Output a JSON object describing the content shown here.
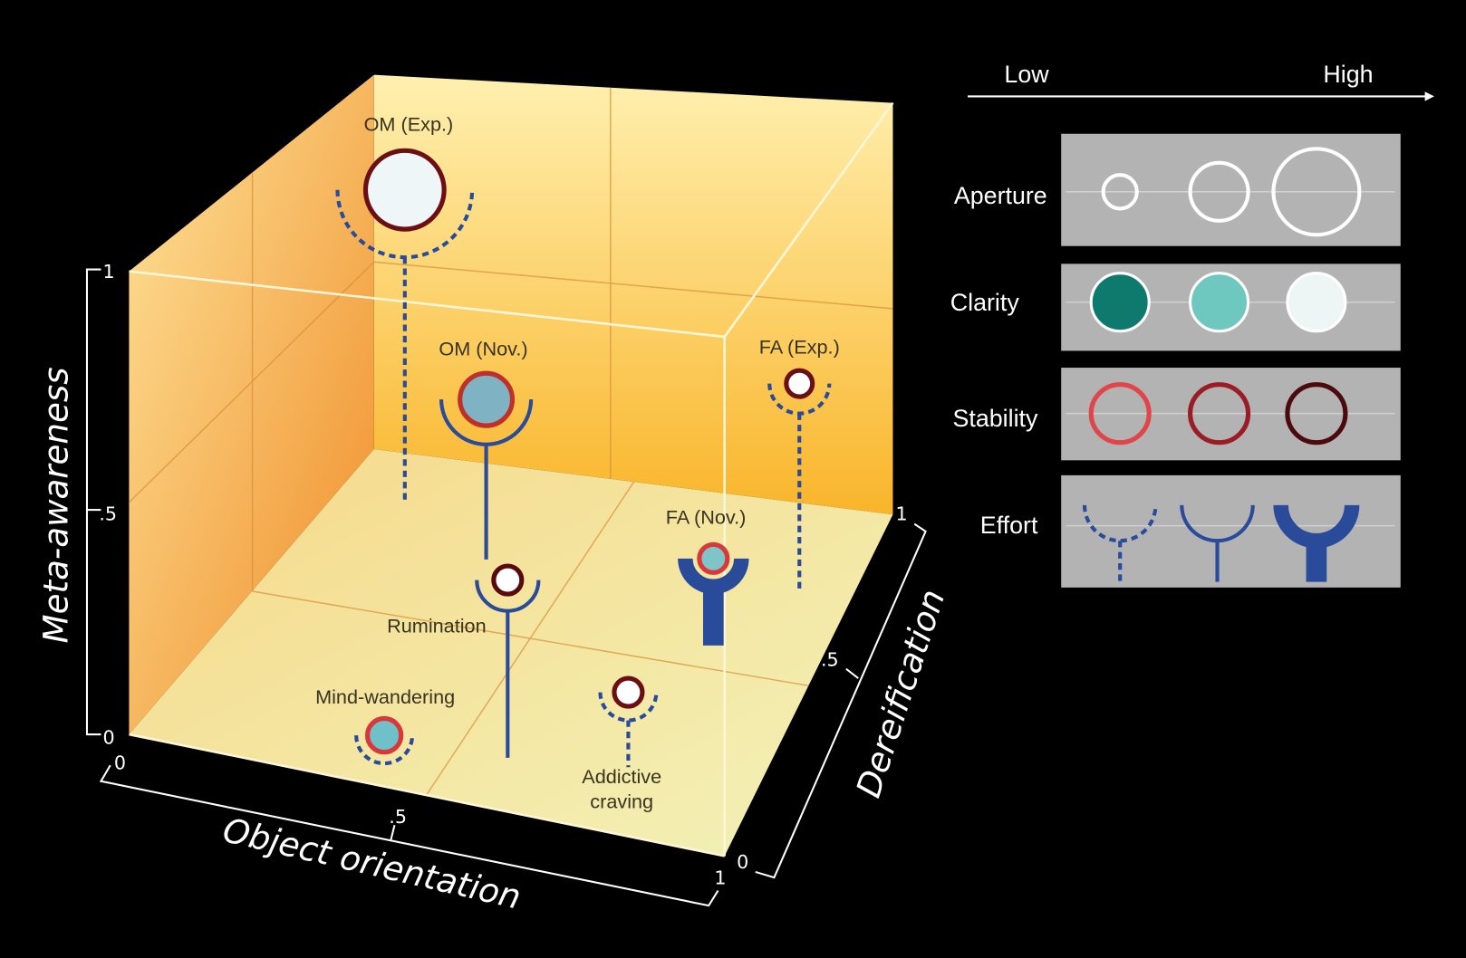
{
  "axes": {
    "meta_awareness": {
      "title": "Meta-awareness",
      "ticks": [
        "0",
        ".5",
        "1"
      ]
    },
    "object_orientation": {
      "title": "Object orientation",
      "ticks": [
        "0",
        ".5",
        "1"
      ]
    },
    "dereification": {
      "title": "Dereification",
      "ticks": [
        "0",
        ".5",
        "1"
      ]
    }
  },
  "states": [
    {
      "label": "OM (Exp.)"
    },
    {
      "label": "OM (Nov.)"
    },
    {
      "label": "FA (Exp.)"
    },
    {
      "label": "FA (Nov.)"
    },
    {
      "label": "Rumination"
    },
    {
      "label": "Mind-wandering"
    },
    {
      "label": "Addictive",
      "label2": "craving"
    }
  ],
  "legend": {
    "low": "Low",
    "high": "High",
    "rows": [
      {
        "label": "Aperture"
      },
      {
        "label": "Clarity",
        "colors": [
          "#0e7a6e",
          "#6ec8bf",
          "#eef6f5"
        ]
      },
      {
        "label": "Stability",
        "colors": [
          "#e0454a",
          "#9a1c25",
          "#4a0a0e"
        ]
      },
      {
        "label": "Effort"
      }
    ]
  },
  "colors": {
    "effort": "#2a4a9a",
    "legend_box": "#b3b3b3"
  }
}
